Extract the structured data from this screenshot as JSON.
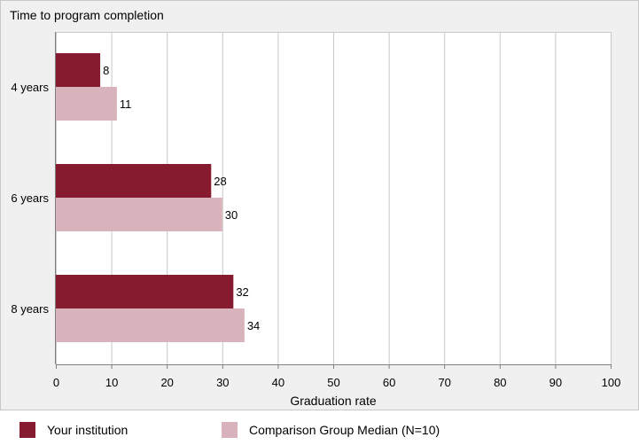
{
  "chart_data": {
    "type": "bar",
    "orientation": "horizontal",
    "title": "Time to program completion",
    "xlabel": "Graduation rate",
    "ylabel": "",
    "categories": [
      "4 years",
      "6 years",
      "8 years"
    ],
    "series": [
      {
        "name": "Your institution",
        "values": [
          8,
          28,
          32
        ],
        "color": "#861b2f"
      },
      {
        "name": "Comparison Group Median (N=10)",
        "values": [
          11,
          30,
          34
        ],
        "color": "#d9b3bb"
      }
    ],
    "xlim": [
      0,
      100
    ],
    "xticks": [
      0,
      10,
      20,
      30,
      40,
      50,
      60,
      70,
      80,
      90,
      100
    ],
    "grid": true,
    "legend_position": "bottom"
  }
}
